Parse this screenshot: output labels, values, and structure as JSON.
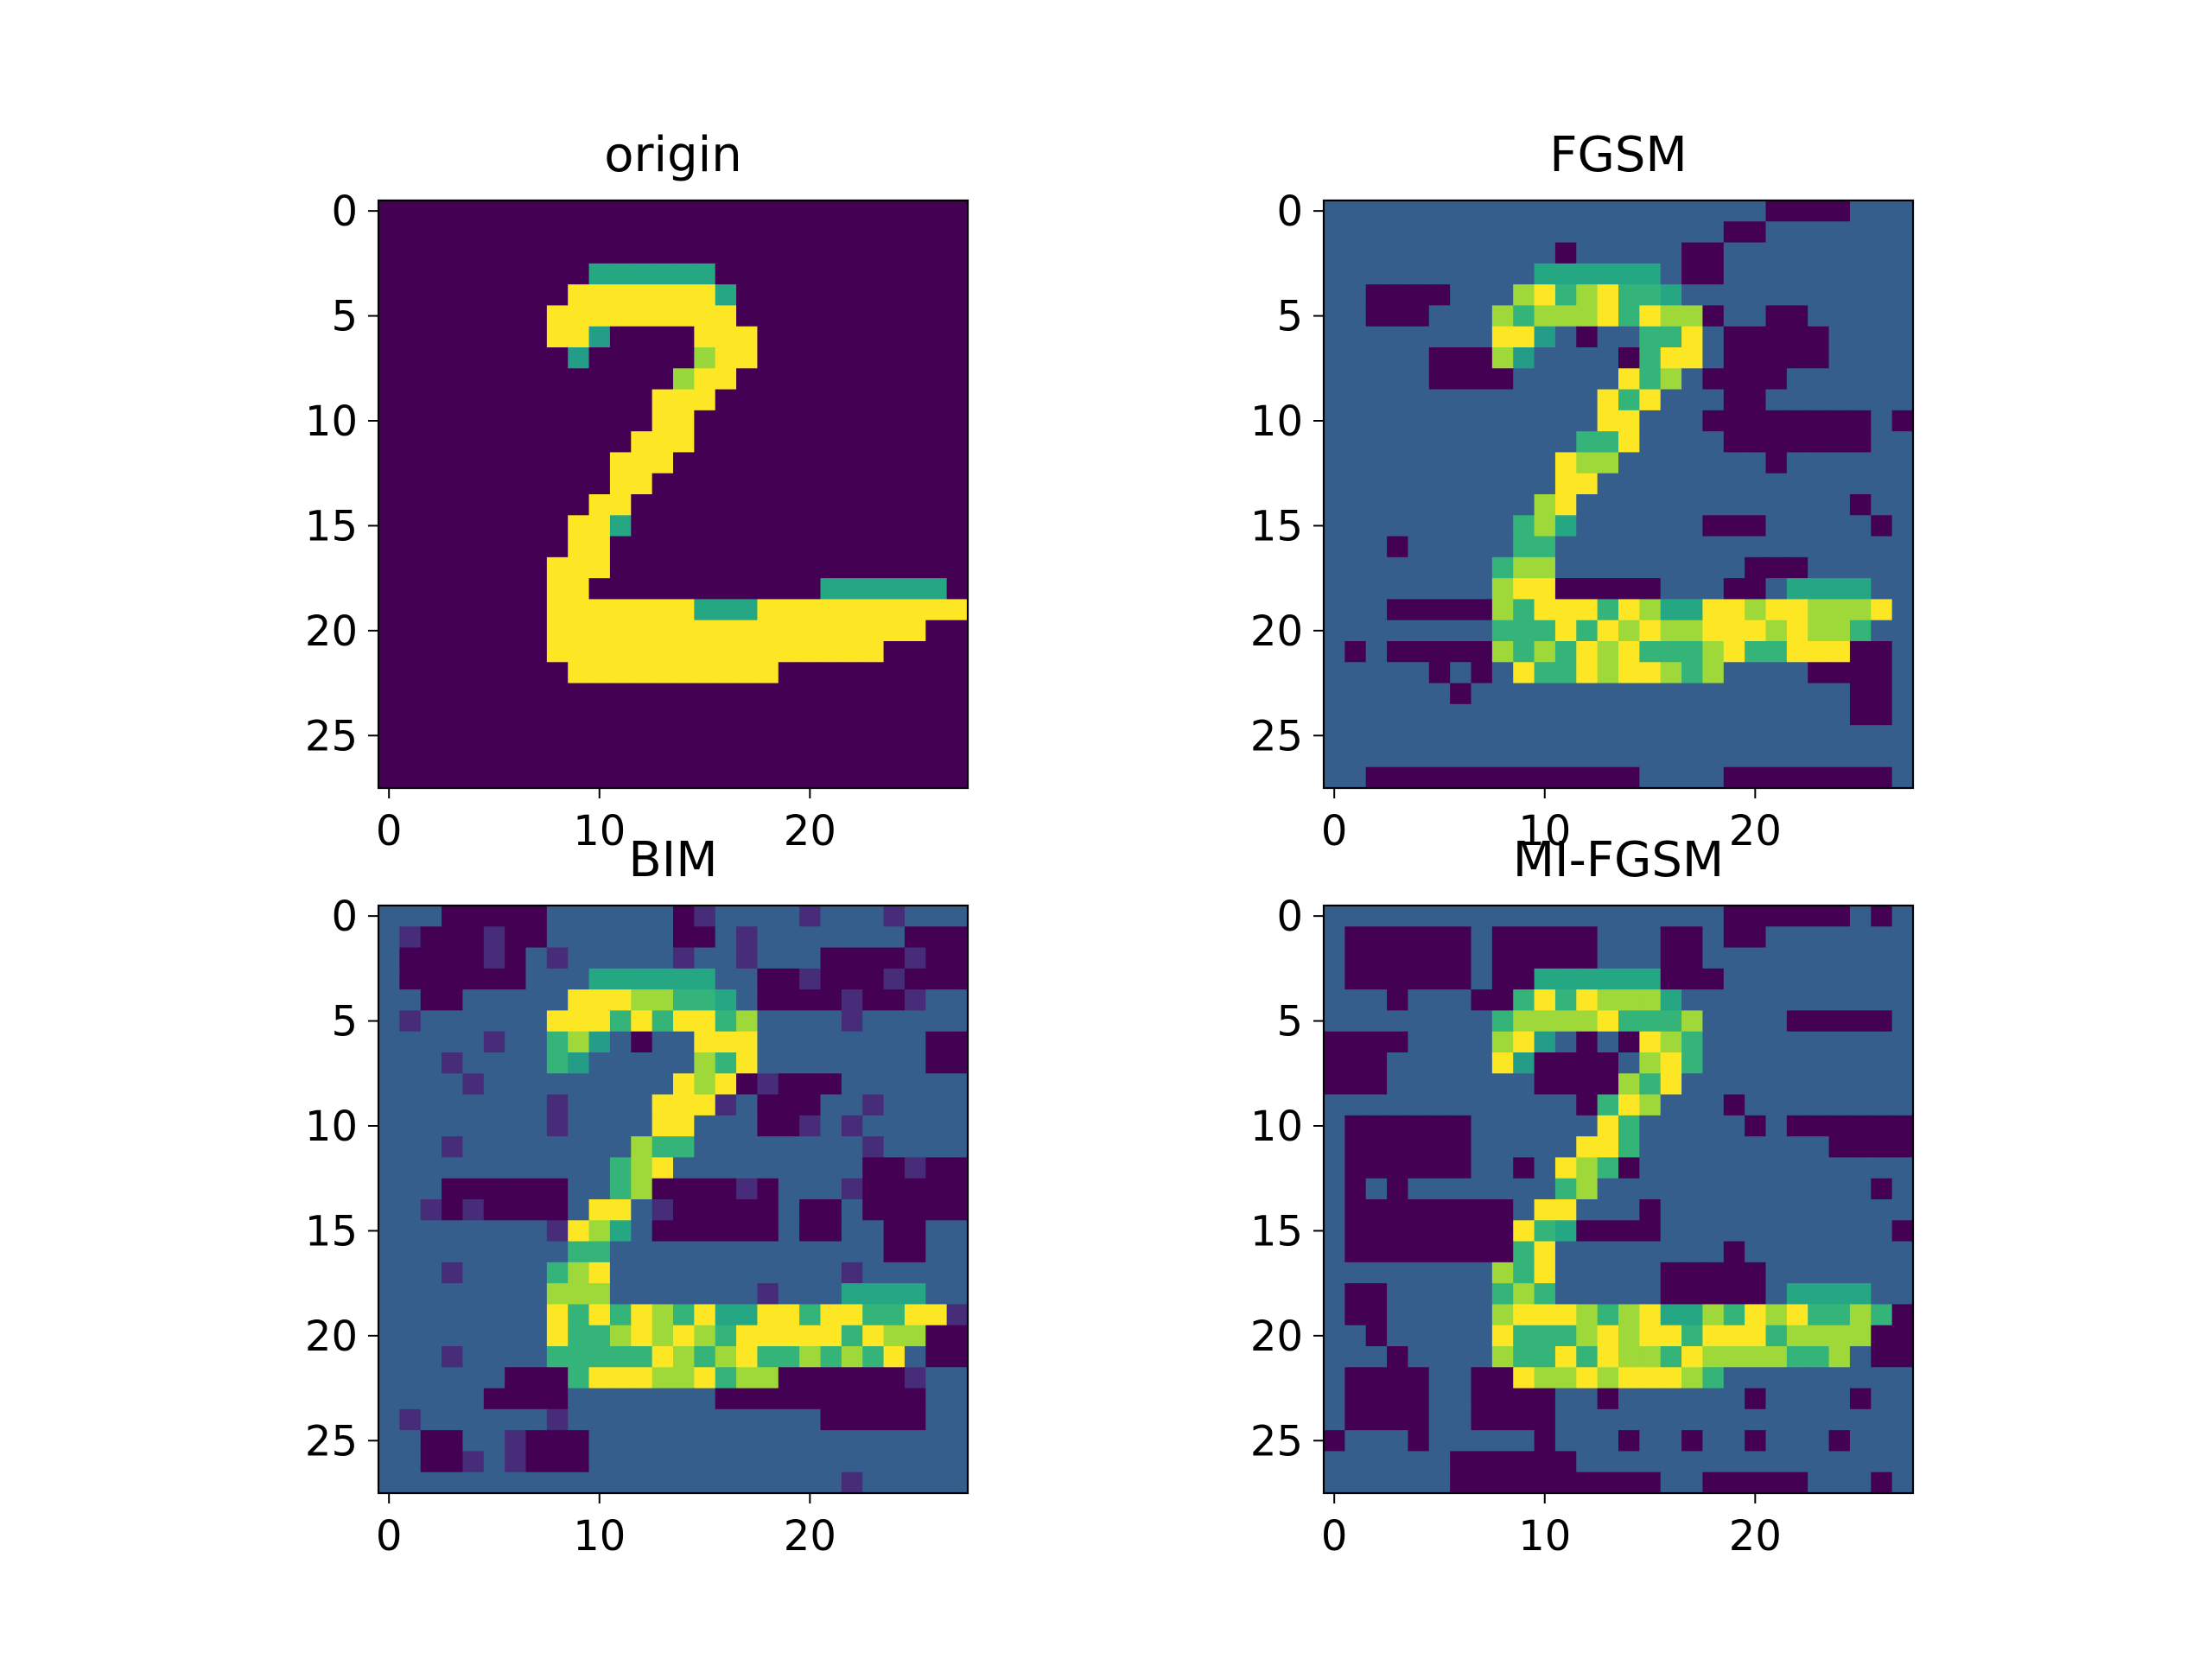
{
  "chart_data": [
    {
      "type": "heatmap",
      "title": "origin",
      "grid_size": [
        28,
        28
      ],
      "x_ticks": [
        "0",
        "10",
        "20"
      ],
      "y_ticks": [
        "0",
        "5",
        "10",
        "15",
        "20",
        "25"
      ],
      "xlim": [
        -0.5,
        27.5
      ],
      "ylim": [
        27.5,
        -0.5
      ],
      "colormap": "viridis",
      "value_range": [
        0,
        1
      ],
      "background_value": 0,
      "image_rows": [
        "............................",
        "............................",
        "............................",
        "..........cccccc............",
        ".........fffffffc...........",
        "........fffffffff...........",
        "........ffa....fff..........",
        "........da.....eff..........",
        "..............eff...........",
        ".............fff............",
        ".............ff.............",
        "............fff.............",
        "...........fff..............",
        "...........ff...............",
        "..........ff................",
        ".........ffc................",
        ".........ff.................",
        "........fff.................",
        "........ff...........cccccc.",
        "........fffffffcccffffffffff",
        "........ffffffffffffffffff..",
        "........ffffffffffffffff....",
        ".........ffffffffff.........",
        "............................",
        "............................",
        "............................",
        "............................",
        "............................"
      ]
    },
    {
      "type": "heatmap",
      "title": "FGSM",
      "grid_size": [
        28,
        28
      ],
      "x_ticks": [
        "0",
        "10",
        "20"
      ],
      "y_ticks": [
        "0",
        "5",
        "10",
        "15",
        "20",
        "25"
      ],
      "xlim": [
        -0.5,
        27.5
      ],
      "ylim": [
        27.5,
        -0.5
      ],
      "colormap": "viridis",
      "value_range": [
        0,
        1
      ],
      "background_value": 0.3,
      "image_rows": [
        ".....................dddd....",
        "...................dd.......",
        "...........d.....dd.........",
        "...........dd....dd.........",
        "..dddd.......dd.............",
        "..ddd...d......dd.d..dd.....",
        "..........d.....d..ddddd....",
        ".....ddddd....d....ddddd....",
        ".....dddd.........dddd......",
        "...................dd.......",
        "..................dddddddd.dd",
        "...................ddddddd..",
        ".....................d......",
        "...........d................",
        "...........d.............d..",
        "..................ddd.....d.",
        "...d........................",
        "....................ddd.....",
        "..........dddddd...dd..dd...",
        "...ddddd....................",
        "........d..............ddd.",
        ".d.ddddd...............dddd",
        ".....d.d...............dddd",
        "......d..................dd",
        ".........................dd.",
        "............................",
        "............................",
        "..ddddddddddddd....dddddddd."
      ],
      "digit_cells": "fgsm"
    },
    {
      "type": "heatmap",
      "title": "BIM",
      "grid_size": [
        28,
        28
      ],
      "x_ticks": [
        "0",
        "10",
        "20"
      ],
      "y_ticks": [
        "0",
        "5",
        "10",
        "15",
        "20",
        "25"
      ],
      "xlim": [
        -0.5,
        27.5
      ],
      "ylim": [
        27.5,
        -0.5
      ],
      "colormap": "viridis",
      "value_range": [
        0,
        1
      ],
      "background_value": 0.3,
      "digit_cells": "bim"
    },
    {
      "type": "heatmap",
      "title": "MI-FGSM",
      "grid_size": [
        28,
        28
      ],
      "x_ticks": [
        "0",
        "10",
        "20"
      ],
      "y_ticks": [
        "0",
        "5",
        "10",
        "15",
        "20",
        "25"
      ],
      "xlim": [
        -0.5,
        27.5
      ],
      "ylim": [
        27.5,
        -0.5
      ],
      "colormap": "viridis",
      "value_range": [
        0,
        1
      ],
      "background_value": 0.3,
      "digit_cells": "mifgsm"
    }
  ]
}
